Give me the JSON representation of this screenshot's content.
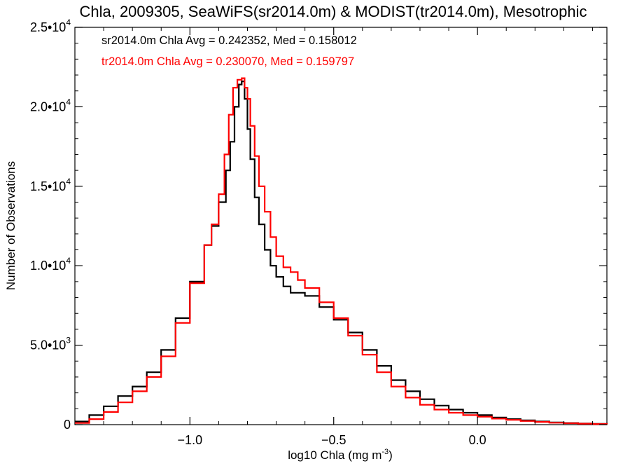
{
  "chart_data": {
    "type": "histogram-step",
    "title": "Chla, 2009305, SeaWiFS(sr2014.0m) & MODIST(tr2014.0m), Mesotrophic",
    "xlabel": "log10 Chla (mg m",
    "xlabel_sup": "-3",
    "xlabel_close": ")",
    "ylabel": "Number of Observations",
    "xlim": [
      -1.4,
      0.45
    ],
    "ylim": [
      0,
      25000
    ],
    "x_ticks": [
      {
        "value": -1.0,
        "label": "−1.0"
      },
      {
        "value": -0.5,
        "label": "−0.5"
      },
      {
        "value": 0.0,
        "label": "0.0"
      }
    ],
    "y_ticks": [
      {
        "value": 0,
        "label": "0"
      },
      {
        "value": 5000,
        "mant": "5.0•10",
        "exp": "3"
      },
      {
        "value": 10000,
        "mant": "1.0•10",
        "exp": "4"
      },
      {
        "value": 15000,
        "mant": "1.5•10",
        "exp": "4"
      },
      {
        "value": 20000,
        "mant": "2.0•10",
        "exp": "4"
      },
      {
        "value": 25000,
        "mant": "2.5•10",
        "exp": "4"
      }
    ],
    "legend": [
      {
        "text": "sr2014.0m Chla Avg = 0.242352, Med = 0.158012",
        "color": "#000000"
      },
      {
        "text": "tr2014.0m Chla Avg = 0.230070, Med = 0.159797",
        "color": "#ff0000"
      }
    ],
    "series": [
      {
        "color": "#000000",
        "points": [
          [
            -1.4,
            200
          ],
          [
            -1.35,
            600
          ],
          [
            -1.3,
            1150
          ],
          [
            -1.25,
            1800
          ],
          [
            -1.2,
            2400
          ],
          [
            -1.15,
            3300
          ],
          [
            -1.1,
            4700
          ],
          [
            -1.05,
            6700
          ],
          [
            -1.0,
            9000
          ],
          [
            -0.95,
            11300
          ],
          [
            -0.925,
            12500
          ],
          [
            -0.9,
            14000
          ],
          [
            -0.875,
            16000
          ],
          [
            -0.86,
            17800
          ],
          [
            -0.845,
            20000
          ],
          [
            -0.83,
            21400
          ],
          [
            -0.82,
            21600
          ],
          [
            -0.81,
            20500
          ],
          [
            -0.8,
            18600
          ],
          [
            -0.79,
            16700
          ],
          [
            -0.775,
            14300
          ],
          [
            -0.76,
            12600
          ],
          [
            -0.74,
            11000
          ],
          [
            -0.72,
            10000
          ],
          [
            -0.7,
            9300
          ],
          [
            -0.675,
            8700
          ],
          [
            -0.65,
            8300
          ],
          [
            -0.6,
            8100
          ],
          [
            -0.55,
            7400
          ],
          [
            -0.5,
            6600
          ],
          [
            -0.45,
            5800
          ],
          [
            -0.4,
            4700
          ],
          [
            -0.35,
            3700
          ],
          [
            -0.3,
            2800
          ],
          [
            -0.25,
            2100
          ],
          [
            -0.2,
            1600
          ],
          [
            -0.15,
            1200
          ],
          [
            -0.1,
            950
          ],
          [
            -0.05,
            750
          ],
          [
            0.0,
            600
          ],
          [
            0.05,
            450
          ],
          [
            0.1,
            350
          ],
          [
            0.15,
            270
          ],
          [
            0.2,
            200
          ],
          [
            0.25,
            140
          ],
          [
            0.3,
            100
          ],
          [
            0.35,
            70
          ],
          [
            0.4,
            50
          ],
          [
            0.45,
            30
          ]
        ]
      },
      {
        "color": "#ff0000",
        "points": [
          [
            -1.4,
            100
          ],
          [
            -1.35,
            350
          ],
          [
            -1.3,
            800
          ],
          [
            -1.25,
            1400
          ],
          [
            -1.2,
            2100
          ],
          [
            -1.15,
            3000
          ],
          [
            -1.1,
            4300
          ],
          [
            -1.05,
            6400
          ],
          [
            -1.0,
            8900
          ],
          [
            -0.95,
            11300
          ],
          [
            -0.925,
            12600
          ],
          [
            -0.9,
            14500
          ],
          [
            -0.88,
            17000
          ],
          [
            -0.865,
            19500
          ],
          [
            -0.85,
            21200
          ],
          [
            -0.835,
            21700
          ],
          [
            -0.82,
            21800
          ],
          [
            -0.81,
            21200
          ],
          [
            -0.8,
            20500
          ],
          [
            -0.79,
            18800
          ],
          [
            -0.775,
            16900
          ],
          [
            -0.76,
            15000
          ],
          [
            -0.74,
            13400
          ],
          [
            -0.72,
            11800
          ],
          [
            -0.7,
            10600
          ],
          [
            -0.675,
            9900
          ],
          [
            -0.65,
            9600
          ],
          [
            -0.625,
            9100
          ],
          [
            -0.6,
            8600
          ],
          [
            -0.55,
            7700
          ],
          [
            -0.5,
            6700
          ],
          [
            -0.45,
            5600
          ],
          [
            -0.4,
            4400
          ],
          [
            -0.35,
            3300
          ],
          [
            -0.3,
            2400
          ],
          [
            -0.25,
            1700
          ],
          [
            -0.2,
            1250
          ],
          [
            -0.15,
            950
          ],
          [
            -0.1,
            750
          ],
          [
            -0.05,
            600
          ],
          [
            0.0,
            500
          ],
          [
            0.05,
            380
          ],
          [
            0.1,
            300
          ],
          [
            0.15,
            230
          ],
          [
            0.2,
            170
          ],
          [
            0.25,
            120
          ],
          [
            0.3,
            90
          ],
          [
            0.35,
            60
          ],
          [
            0.4,
            40
          ],
          [
            0.45,
            20
          ]
        ]
      }
    ]
  }
}
